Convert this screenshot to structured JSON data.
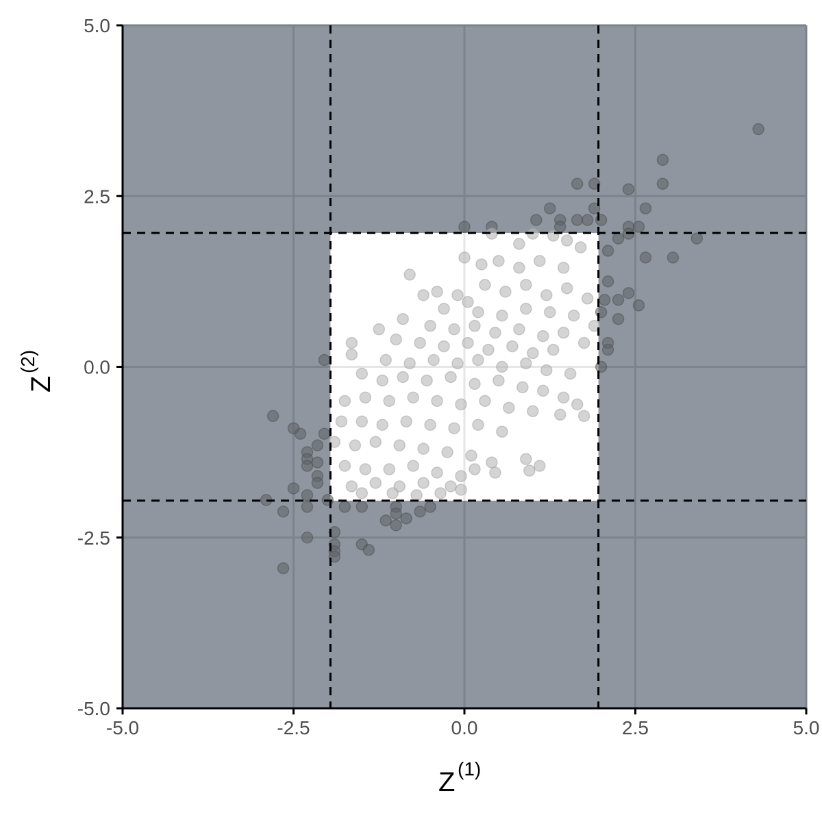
{
  "chart_data": {
    "type": "scatter",
    "title": "",
    "xlabel": {
      "base": "Z",
      "superscript": "(1)"
    },
    "ylabel": {
      "base": "Z",
      "superscript": "(2)"
    },
    "xlim": [
      -5.0,
      5.0
    ],
    "ylim": [
      -5.0,
      5.0
    ],
    "xticks": [
      -5.0,
      -2.5,
      0.0,
      2.5,
      5.0
    ],
    "yticks": [
      -5.0,
      -2.5,
      0.0,
      2.5,
      5.0
    ],
    "xtick_labels": [
      "-5.0",
      "-2.5",
      "0.0",
      "2.5",
      "5.0"
    ],
    "ytick_labels": [
      "-5.0",
      "-2.5",
      "0.0",
      "2.5",
      "5.0"
    ],
    "grid": true,
    "threshold": 1.96,
    "colors": {
      "outside_region": "#8f969f",
      "inside_region": "#ffffff",
      "grid_outside": "#7c838b",
      "grid_inside": "#e6e6e6",
      "point_inside": "#b7b7b7",
      "point_outside": "#5f6366",
      "threshold_line": "#000000"
    },
    "points": [
      [
        4.3,
        3.48
      ],
      [
        2.9,
        3.03
      ],
      [
        2.9,
        2.68
      ],
      [
        1.65,
        2.68
      ],
      [
        1.9,
        2.68
      ],
      [
        2.4,
        2.6
      ],
      [
        2.65,
        2.32
      ],
      [
        1.25,
        2.32
      ],
      [
        1.9,
        2.32
      ],
      [
        1.05,
        2.15
      ],
      [
        1.4,
        2.15
      ],
      [
        1.65,
        2.15
      ],
      [
        1.8,
        2.15
      ],
      [
        2.0,
        2.15
      ],
      [
        0.0,
        2.05
      ],
      [
        0.4,
        2.05
      ],
      [
        1.4,
        2.05
      ],
      [
        2.4,
        2.05
      ],
      [
        2.55,
        2.05
      ],
      [
        2.4,
        1.95
      ],
      [
        2.25,
        1.88
      ],
      [
        3.4,
        1.88
      ],
      [
        2.1,
        1.7
      ],
      [
        2.65,
        1.6
      ],
      [
        3.05,
        1.6
      ],
      [
        2.1,
        1.25
      ],
      [
        2.4,
        1.08
      ],
      [
        2.05,
        0.98
      ],
      [
        2.25,
        0.98
      ],
      [
        2.0,
        0.8
      ],
      [
        2.25,
        0.7
      ],
      [
        2.55,
        0.9
      ],
      [
        2.1,
        0.35
      ],
      [
        2.1,
        0.25
      ],
      [
        2.0,
        0.0
      ],
      [
        -2.05,
        0.1
      ],
      [
        -2.8,
        -0.72
      ],
      [
        -2.5,
        -0.9
      ],
      [
        -2.4,
        -0.98
      ],
      [
        -2.05,
        -0.98
      ],
      [
        -2.15,
        -1.15
      ],
      [
        -2.3,
        -1.25
      ],
      [
        -2.3,
        -1.35
      ],
      [
        -2.3,
        -1.45
      ],
      [
        -2.15,
        -1.4
      ],
      [
        -2.15,
        -1.6
      ],
      [
        -2.15,
        -1.7
      ],
      [
        -2.5,
        -1.78
      ],
      [
        -2.3,
        -1.88
      ],
      [
        -2.9,
        -1.95
      ],
      [
        -2.3,
        -2.05
      ],
      [
        -2.65,
        -2.12
      ],
      [
        -2.0,
        -1.95
      ],
      [
        -1.75,
        -2.05
      ],
      [
        -1.5,
        -2.05
      ],
      [
        -1.0,
        -2.05
      ],
      [
        -0.5,
        -2.05
      ],
      [
        -1.0,
        -2.15
      ],
      [
        -0.85,
        -2.22
      ],
      [
        -1.15,
        -2.25
      ],
      [
        -1.0,
        -2.32
      ],
      [
        -0.65,
        -2.12
      ],
      [
        -2.3,
        -2.5
      ],
      [
        -1.9,
        -2.42
      ],
      [
        -1.9,
        -2.6
      ],
      [
        -1.9,
        -2.7
      ],
      [
        -1.9,
        -2.78
      ],
      [
        -1.5,
        -2.6
      ],
      [
        -1.4,
        -2.68
      ],
      [
        -2.65,
        -2.95
      ],
      [
        0.4,
        1.95
      ],
      [
        0.8,
        1.8
      ],
      [
        1.0,
        1.95
      ],
      [
        1.3,
        1.92
      ],
      [
        1.5,
        1.85
      ],
      [
        1.7,
        1.75
      ],
      [
        0.0,
        1.6
      ],
      [
        0.25,
        1.5
      ],
      [
        0.5,
        1.55
      ],
      [
        0.8,
        1.45
      ],
      [
        1.1,
        1.55
      ],
      [
        1.45,
        1.45
      ],
      [
        -0.8,
        1.35
      ],
      [
        -0.4,
        1.1
      ],
      [
        -0.1,
        1.05
      ],
      [
        0.05,
        0.95
      ],
      [
        0.3,
        1.2
      ],
      [
        0.6,
        1.1
      ],
      [
        0.9,
        1.2
      ],
      [
        1.2,
        1.05
      ],
      [
        1.5,
        1.15
      ],
      [
        1.8,
        1.0
      ],
      [
        -0.6,
        1.05
      ],
      [
        -0.3,
        0.85
      ],
      [
        0.2,
        0.8
      ],
      [
        0.55,
        0.75
      ],
      [
        0.9,
        0.85
      ],
      [
        1.25,
        0.8
      ],
      [
        1.6,
        0.75
      ],
      [
        1.9,
        0.6
      ],
      [
        -0.9,
        0.7
      ],
      [
        -0.5,
        0.6
      ],
      [
        -0.15,
        0.55
      ],
      [
        0.15,
        0.6
      ],
      [
        0.45,
        0.5
      ],
      [
        0.8,
        0.55
      ],
      [
        1.15,
        0.45
      ],
      [
        1.45,
        0.5
      ],
      [
        1.75,
        0.35
      ],
      [
        -1.25,
        0.55
      ],
      [
        -1.65,
        0.35
      ],
      [
        -1.65,
        0.18
      ],
      [
        -1.0,
        0.4
      ],
      [
        -0.65,
        0.35
      ],
      [
        -0.3,
        0.3
      ],
      [
        0.05,
        0.35
      ],
      [
        0.35,
        0.25
      ],
      [
        0.7,
        0.3
      ],
      [
        1.0,
        0.2
      ],
      [
        1.3,
        0.25
      ],
      [
        -1.15,
        0.1
      ],
      [
        -0.8,
        0.05
      ],
      [
        -0.45,
        0.1
      ],
      [
        -0.1,
        0.05
      ],
      [
        0.2,
        0.1
      ],
      [
        0.55,
        0.0
      ],
      [
        0.9,
        0.05
      ],
      [
        1.2,
        -0.05
      ],
      [
        1.55,
        -0.1
      ],
      [
        -1.5,
        -0.1
      ],
      [
        -1.2,
        -0.2
      ],
      [
        -0.9,
        -0.15
      ],
      [
        -0.55,
        -0.2
      ],
      [
        -0.2,
        -0.15
      ],
      [
        0.15,
        -0.25
      ],
      [
        0.5,
        -0.2
      ],
      [
        0.85,
        -0.3
      ],
      [
        1.15,
        -0.35
      ],
      [
        1.45,
        -0.45
      ],
      [
        1.65,
        -0.55
      ],
      [
        -1.75,
        -0.5
      ],
      [
        -1.45,
        -0.45
      ],
      [
        -1.1,
        -0.5
      ],
      [
        -0.75,
        -0.45
      ],
      [
        -0.4,
        -0.5
      ],
      [
        -0.05,
        -0.55
      ],
      [
        0.3,
        -0.5
      ],
      [
        0.65,
        -0.6
      ],
      [
        1.0,
        -0.65
      ],
      [
        1.4,
        -0.7
      ],
      [
        1.75,
        -0.72
      ],
      [
        -1.8,
        -0.8
      ],
      [
        -1.5,
        -0.8
      ],
      [
        -1.2,
        -0.85
      ],
      [
        -0.85,
        -0.8
      ],
      [
        -0.5,
        -0.85
      ],
      [
        -0.15,
        -0.9
      ],
      [
        0.2,
        -0.85
      ],
      [
        0.55,
        -0.95
      ],
      [
        -1.9,
        -1.1
      ],
      [
        -1.6,
        -1.15
      ],
      [
        -1.3,
        -1.1
      ],
      [
        -0.95,
        -1.15
      ],
      [
        -0.6,
        -1.2
      ],
      [
        -0.25,
        -1.25
      ],
      [
        0.1,
        -1.3
      ],
      [
        0.4,
        -1.4
      ],
      [
        0.9,
        -1.35
      ],
      [
        1.1,
        -1.45
      ],
      [
        -1.75,
        -1.45
      ],
      [
        -1.45,
        -1.5
      ],
      [
        -1.1,
        -1.5
      ],
      [
        -0.75,
        -1.45
      ],
      [
        -0.4,
        -1.55
      ],
      [
        -0.05,
        -1.6
      ],
      [
        0.15,
        -1.5
      ],
      [
        0.45,
        -1.55
      ],
      [
        0.95,
        -1.52
      ],
      [
        -1.65,
        -1.75
      ],
      [
        -1.3,
        -1.7
      ],
      [
        -0.95,
        -1.75
      ],
      [
        -0.6,
        -1.7
      ],
      [
        -0.2,
        -1.75
      ],
      [
        -1.5,
        -1.85
      ],
      [
        -1.05,
        -1.85
      ],
      [
        -0.7,
        -1.88
      ],
      [
        -0.35,
        -1.85
      ],
      [
        -0.05,
        -1.8
      ]
    ]
  }
}
